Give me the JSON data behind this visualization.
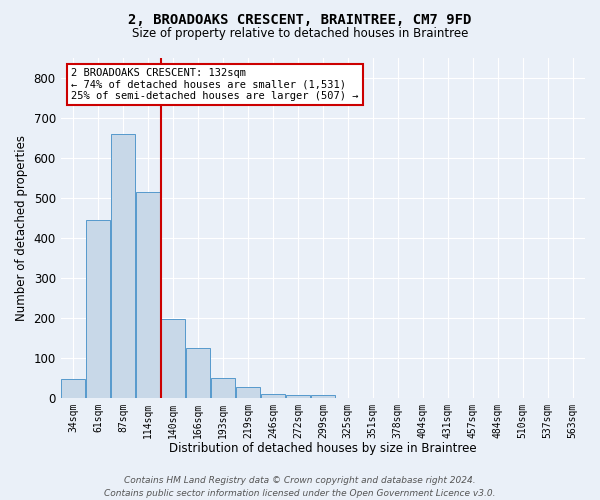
{
  "title": "2, BROADOAKS CRESCENT, BRAINTREE, CM7 9FD",
  "subtitle": "Size of property relative to detached houses in Braintree",
  "xlabel": "Distribution of detached houses by size in Braintree",
  "ylabel": "Number of detached properties",
  "bin_labels": [
    "34sqm",
    "61sqm",
    "87sqm",
    "114sqm",
    "140sqm",
    "166sqm",
    "193sqm",
    "219sqm",
    "246sqm",
    "272sqm",
    "299sqm",
    "325sqm",
    "351sqm",
    "378sqm",
    "404sqm",
    "431sqm",
    "457sqm",
    "484sqm",
    "510sqm",
    "537sqm",
    "563sqm"
  ],
  "bar_heights": [
    47,
    443,
    660,
    513,
    197,
    124,
    50,
    27,
    10,
    7,
    8,
    0,
    0,
    0,
    0,
    0,
    0,
    0,
    0,
    0,
    0
  ],
  "bar_color": "#c8d8e8",
  "bar_edge_color": "#5599cc",
  "vline_color": "#cc0000",
  "annotation_text": "2 BROADOAKS CRESCENT: 132sqm\n← 74% of detached houses are smaller (1,531)\n25% of semi-detached houses are larger (507) →",
  "annotation_box_color": "#ffffff",
  "annotation_box_edge_color": "#cc0000",
  "yticks": [
    0,
    100,
    200,
    300,
    400,
    500,
    600,
    700,
    800
  ],
  "ylim": [
    0,
    850
  ],
  "background_color": "#eaf0f8",
  "grid_color": "#ffffff",
  "footer": "Contains HM Land Registry data © Crown copyright and database right 2024.\nContains public sector information licensed under the Open Government Licence v3.0."
}
